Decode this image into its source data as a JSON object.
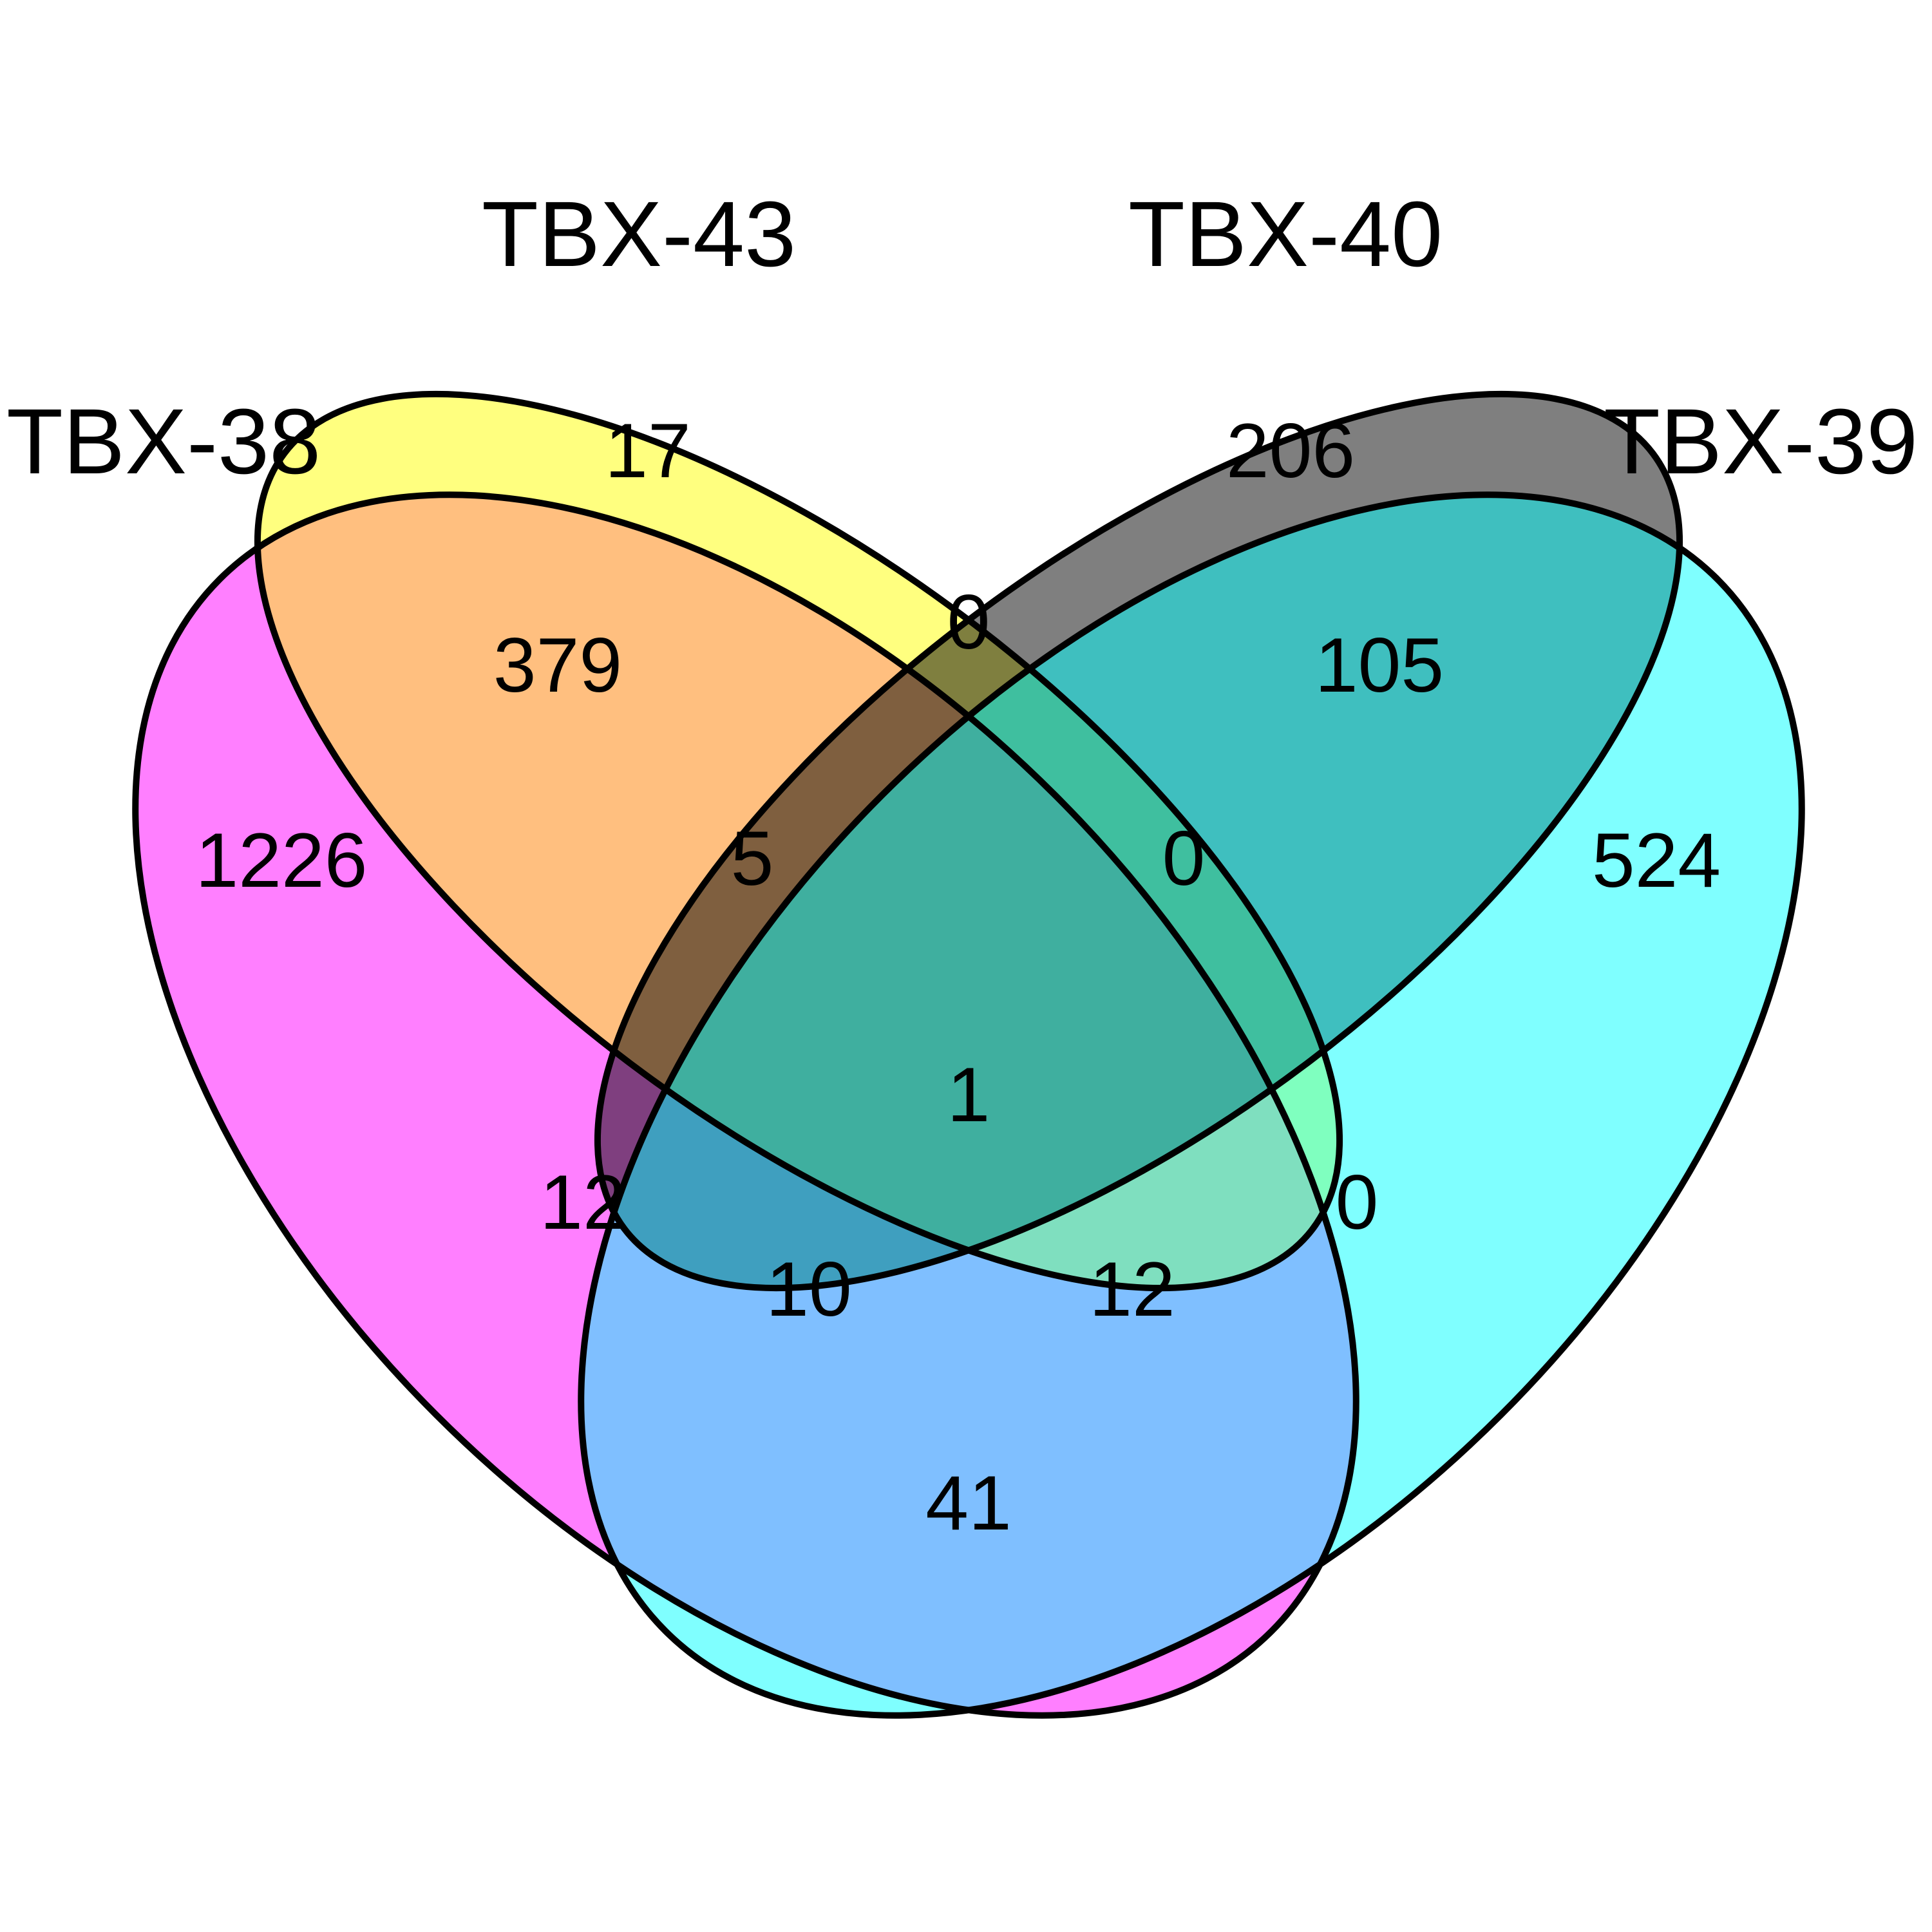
{
  "sets": [
    {
      "id": "a",
      "label": "TBX-38",
      "color": "#FF00FF"
    },
    {
      "id": "b",
      "label": "TBX-43",
      "color": "#FFFF00"
    },
    {
      "id": "c",
      "label": "TBX-40",
      "color": "#000000"
    },
    {
      "id": "d",
      "label": "TBX-39",
      "color": "#00FFFF"
    }
  ],
  "regions": [
    {
      "sets": [
        "TBX-38"
      ],
      "count": "1226"
    },
    {
      "sets": [
        "TBX-43"
      ],
      "count": "17"
    },
    {
      "sets": [
        "TBX-40"
      ],
      "count": "206"
    },
    {
      "sets": [
        "TBX-39"
      ],
      "count": "524"
    },
    {
      "sets": [
        "TBX-38",
        "TBX-43"
      ],
      "count": "379"
    },
    {
      "sets": [
        "TBX-43",
        "TBX-40"
      ],
      "count": "0"
    },
    {
      "sets": [
        "TBX-40",
        "TBX-39"
      ],
      "count": "105"
    },
    {
      "sets": [
        "TBX-38",
        "TBX-43",
        "TBX-40"
      ],
      "count": "5"
    },
    {
      "sets": [
        "TBX-43",
        "TBX-40",
        "TBX-39"
      ],
      "count": "0"
    },
    {
      "sets": [
        "TBX-38",
        "TBX-40"
      ],
      "count": "12"
    },
    {
      "sets": [
        "TBX-43",
        "TBX-39"
      ],
      "count": "0"
    },
    {
      "sets": [
        "TBX-38",
        "TBX-43",
        "TBX-40",
        "TBX-39"
      ],
      "count": "1"
    },
    {
      "sets": [
        "TBX-38",
        "TBX-40",
        "TBX-39"
      ],
      "count": "10"
    },
    {
      "sets": [
        "TBX-38",
        "TBX-43",
        "TBX-39"
      ],
      "count": "12"
    },
    {
      "sets": [
        "TBX-38",
        "TBX-39"
      ],
      "count": "41"
    }
  ]
}
